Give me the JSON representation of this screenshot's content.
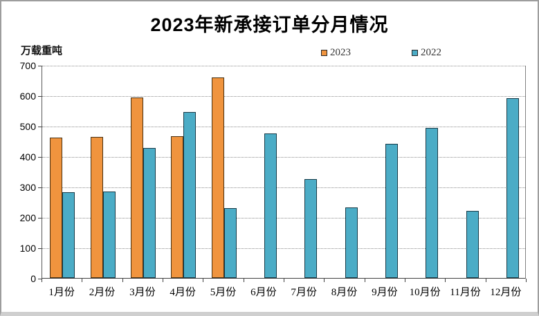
{
  "window": {
    "background": "#ffffff",
    "border_color": "#9d9d9d"
  },
  "chart_data": {
    "type": "bar",
    "title": "2023年新承接订单分月情况",
    "ylabel": "万载重吨",
    "xlabel": "",
    "categories": [
      "1月份",
      "2月份",
      "3月份",
      "4月份",
      "5月份",
      "6月份",
      "7月份",
      "8月份",
      "9月份",
      "10月份",
      "11月份",
      "12月份"
    ],
    "series": [
      {
        "name": "2023",
        "color": "#F0943E",
        "values": [
          461,
          463,
          593,
          467,
          658,
          null,
          null,
          null,
          null,
          null,
          null,
          null
        ]
      },
      {
        "name": "2022",
        "color": "#4BACC6",
        "values": [
          282,
          283,
          428,
          546,
          230,
          476,
          325,
          232,
          440,
          493,
          220,
          590
        ]
      }
    ],
    "ylim": [
      0,
      700
    ],
    "yticks": [
      0,
      100,
      200,
      300,
      400,
      500,
      600,
      700
    ],
    "grid": "horizontal-dotted",
    "legend_position": "top-center",
    "legend_entries": [
      "2023",
      "2022"
    ]
  }
}
